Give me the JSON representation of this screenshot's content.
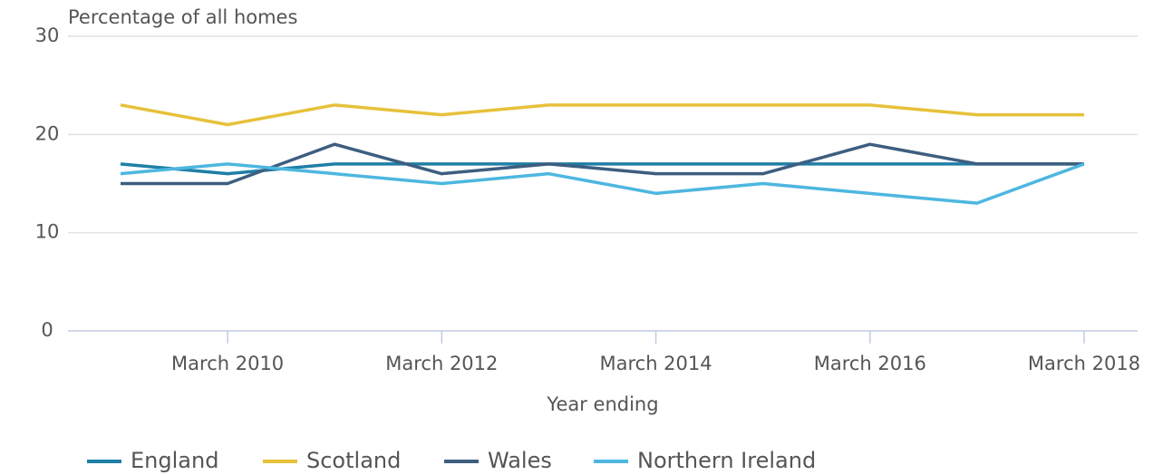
{
  "chart_data": {
    "type": "line",
    "y_axis_label": "Percentage of all homes",
    "x_axis_label": "Year ending",
    "categories": [
      null,
      "March 2010",
      null,
      "March 2012",
      null,
      "March 2014",
      null,
      "March 2016",
      null,
      "March 2018"
    ],
    "series": [
      {
        "name": "England",
        "color": "#1f7fa6",
        "values": [
          17,
          16,
          17,
          17,
          17,
          17,
          17,
          17,
          17,
          17
        ]
      },
      {
        "name": "Scotland",
        "color": "#e6c13b",
        "values": [
          23,
          21,
          23,
          22,
          23,
          23,
          23,
          23,
          22,
          22
        ]
      },
      {
        "name": "Wales",
        "color": "#3d5e80",
        "values": [
          15,
          15,
          19,
          16,
          17,
          16,
          16,
          19,
          17,
          17
        ]
      },
      {
        "name": "Northern Ireland",
        "color": "#4db7e0",
        "values": [
          16,
          17,
          16,
          15,
          16,
          14,
          15,
          14,
          13,
          17
        ]
      }
    ],
    "ylim": [
      0,
      30
    ],
    "yticks": [
      0,
      10,
      20,
      30
    ],
    "grid": true,
    "legend": "bottom"
  }
}
